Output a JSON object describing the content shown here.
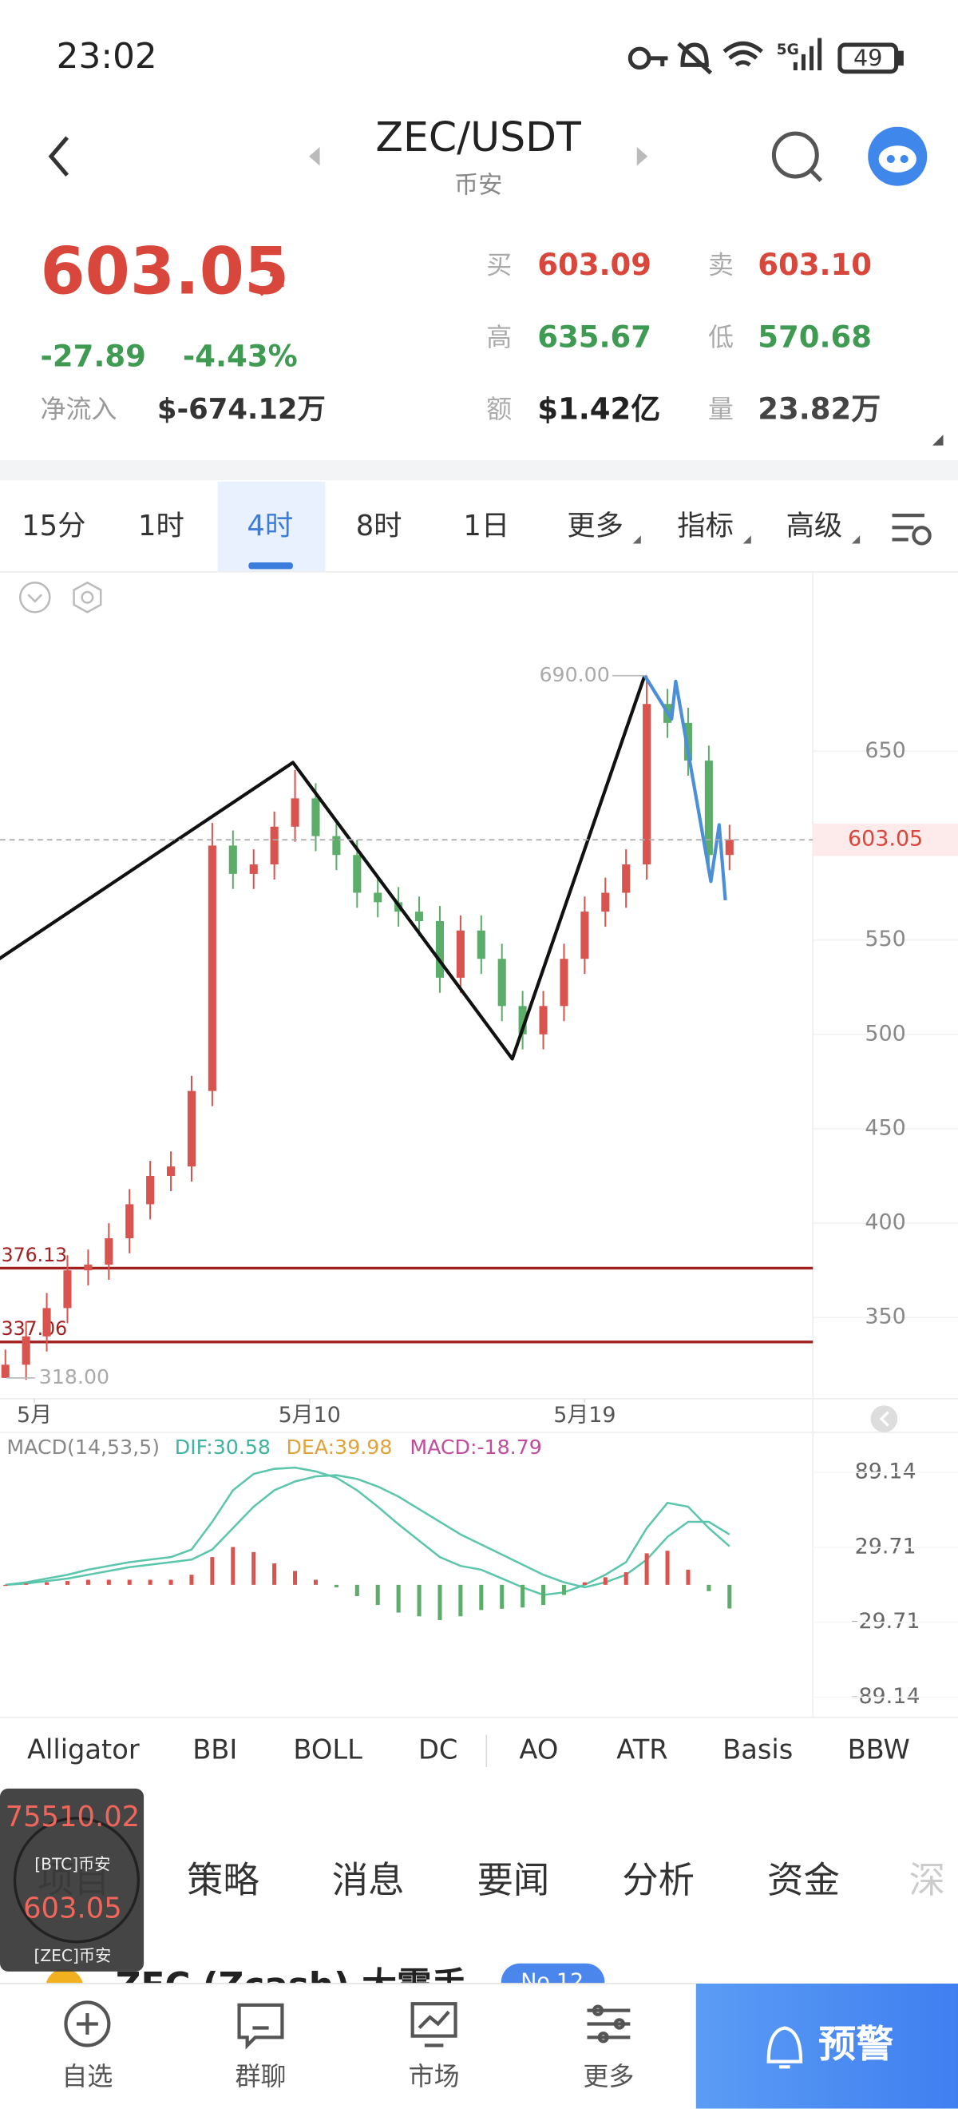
{
  "status_bar": {
    "time": "23:02",
    "battery": "49"
  },
  "header": {
    "title": "ZEC/USDT",
    "subtitle": "币安"
  },
  "quote": {
    "price": "603.05",
    "change": "-27.89",
    "change_pct": "-4.43%",
    "net_inflow_label": "净流入",
    "net_inflow": "$-674.12万",
    "fields": [
      {
        "label": "买",
        "value": "603.09"
      },
      {
        "label": "卖",
        "value": "603.10"
      },
      {
        "label": "高",
        "value": "635.67"
      },
      {
        "label": "低",
        "value": "570.68"
      },
      {
        "label": "额",
        "value": "$1.42亿"
      },
      {
        "label": "量",
        "value": "23.82万"
      }
    ]
  },
  "intervals": [
    "15分",
    "1时",
    "4时",
    "8时",
    "1日",
    "更多",
    "指标",
    "高级"
  ],
  "selected_interval": 2,
  "chart_data": [
    {
      "type": "candlestick",
      "up_color": "#d9534f",
      "down_color": "#5cad6a",
      "xlim": [
        -0.26,
        39.03
      ],
      "ylim": [
        307,
        745
      ],
      "xticks": [
        {
          "value": 1.4,
          "label": "5月"
        },
        {
          "value": 14.7,
          "label": "5月10"
        },
        {
          "value": 28,
          "label": "5月19"
        }
      ],
      "yticks": [
        350,
        400,
        450,
        500,
        550,
        650
      ],
      "open": [
        318,
        325,
        340,
        355,
        375,
        378,
        392,
        410,
        425,
        430,
        470,
        600,
        585,
        590,
        610,
        625,
        605,
        595,
        575,
        570,
        565,
        560,
        530,
        555,
        540,
        515,
        500,
        515,
        540,
        565,
        575,
        590,
        675,
        665,
        645,
        595
      ],
      "high": [
        333,
        348,
        363,
        383,
        386,
        400,
        418,
        433,
        438,
        478,
        612,
        608,
        598,
        618,
        640,
        633,
        613,
        603,
        583,
        578,
        573,
        568,
        563,
        563,
        548,
        523,
        523,
        548,
        573,
        583,
        598,
        690,
        683,
        673,
        653,
        611
      ],
      "low": [
        318,
        317,
        332,
        347,
        367,
        370,
        384,
        402,
        417,
        422,
        462,
        577,
        577,
        582,
        602,
        597,
        587,
        567,
        562,
        557,
        552,
        522,
        522,
        532,
        507,
        492,
        492,
        507,
        532,
        557,
        567,
        582,
        657,
        637,
        587,
        587
      ],
      "close": [
        325,
        340,
        355,
        375,
        378,
        392,
        410,
        425,
        430,
        470,
        600,
        585,
        590,
        610,
        625,
        605,
        595,
        575,
        570,
        565,
        560,
        530,
        555,
        540,
        515,
        500,
        515,
        540,
        565,
        575,
        590,
        675,
        665,
        645,
        595,
        603.05
      ],
      "last_price": 603.05,
      "hlines": [
        {
          "value": 376.13,
          "color": "#a32020"
        },
        {
          "value": 337.06,
          "color": "#a32020"
        }
      ],
      "high_label": {
        "value": 690,
        "label": "690.00"
      },
      "low_label": {
        "value": 318,
        "label": "318.00"
      },
      "drawings": [
        {
          "color": "#111111",
          "x": [
            -0.3,
            13.9,
            24.5,
            30.9
          ],
          "values": [
            540,
            644,
            487,
            690
          ]
        },
        {
          "color": "#4a8fd8",
          "x": [
            30.9,
            32.2,
            32.4,
            34.1,
            34.5,
            34.8
          ],
          "values": [
            690,
            667,
            687,
            581,
            611,
            571
          ]
        }
      ]
    },
    {
      "type": "macd",
      "title": "MACD(14,53,5)",
      "xlim": [
        -0.26,
        39.03
      ],
      "ylim": [
        -103,
        121
      ],
      "yticks": [
        89.14,
        29.71,
        -29.71,
        -89.14
      ],
      "line_color": "#5bc6ac",
      "up_color": "#d9534f",
      "down_color": "#5cad6a",
      "series": [
        {
          "name": "DIF:30.58",
          "color": "#3fb3a0",
          "values": [
            0,
            2,
            5,
            8,
            12,
            15,
            18,
            20,
            22,
            28,
            50,
            75,
            88,
            92,
            93,
            90,
            85,
            75,
            62,
            48,
            35,
            22,
            15,
            12,
            5,
            -2,
            -8,
            -6,
            0,
            8,
            18,
            45,
            65,
            62,
            45,
            30.58
          ]
        },
        {
          "name": "DEA:39.98",
          "color": "#e2a23a",
          "values": [
            0,
            1,
            3,
            5,
            8,
            11,
            14,
            16,
            18,
            20,
            28,
            45,
            62,
            75,
            82,
            86,
            87,
            84,
            78,
            70,
            60,
            50,
            40,
            32,
            24,
            16,
            8,
            2,
            -2,
            2,
            8,
            20,
            38,
            50,
            50,
            39.98
          ]
        },
        {
          "name": "MACD:-18.79",
          "color": "#c24d9e",
          "values": [
            0,
            1,
            2,
            3,
            4,
            4,
            4,
            4,
            4,
            8,
            22,
            30,
            26,
            17,
            11,
            4,
            -2,
            -9,
            -16,
            -22,
            -25,
            -28,
            -25,
            -20,
            -19,
            -18,
            -16,
            -8,
            2,
            6,
            10,
            25,
            27,
            12,
            -5,
            -18.79
          ]
        }
      ]
    }
  ],
  "indicators": [
    "Alligator",
    "BBI",
    "BOLL",
    "DC",
    "AO",
    "ATR",
    "Basis",
    "BBW"
  ],
  "floating": {
    "btc_price": "75510.02",
    "btc_label": "[BTC]币安",
    "zec_price": "603.05",
    "zec_label": "[ZEC]币安"
  },
  "tabs": [
    "项目",
    "策略",
    "消息",
    "要闻",
    "分析",
    "资金",
    "深"
  ],
  "news_peek": {
    "title": "ZEC (Zcash) 大震手",
    "badge": "No.12"
  },
  "nav": [
    "自选",
    "群聊",
    "市场",
    "更多"
  ],
  "alert_button": "预警"
}
